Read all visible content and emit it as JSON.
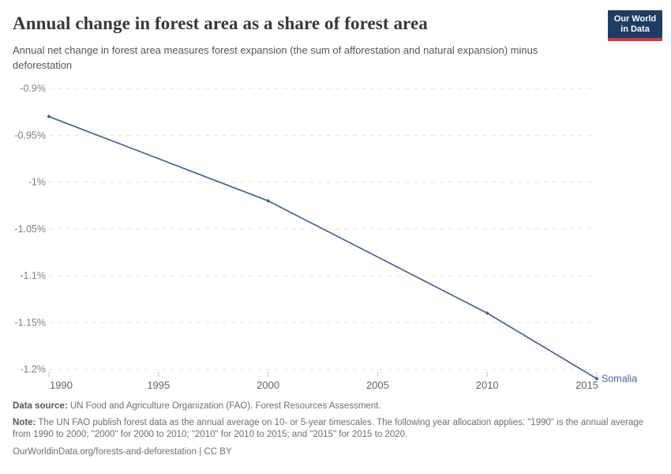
{
  "header": {
    "title": "Annual change in forest area as a share of forest area",
    "subtitle": "Annual net change in forest area measures forest expansion (the sum of afforestation and natural expansion) minus deforestation",
    "logo": {
      "line1": "Our World",
      "line2": "in Data",
      "bg_color": "#1d3d63",
      "accent_color": "#d73a39"
    }
  },
  "chart_data": {
    "type": "line",
    "title": "Annual change in forest area as a share of forest area",
    "xlabel": "",
    "ylabel": "",
    "unit": "%",
    "grid": "horizontal-dashed",
    "legend": "end-of-line-label",
    "xlim": [
      1990,
      2015
    ],
    "ylim": [
      -1.2,
      -0.9
    ],
    "x_ticks": [
      {
        "value": 1990,
        "label": "1990"
      },
      {
        "value": 1995,
        "label": "1995"
      },
      {
        "value": 2000,
        "label": "2000"
      },
      {
        "value": 2005,
        "label": "2005"
      },
      {
        "value": 2010,
        "label": "2010"
      },
      {
        "value": 2015,
        "label": "2015"
      }
    ],
    "y_ticks": [
      {
        "value": -0.9,
        "label": "-0.9%"
      },
      {
        "value": -0.95,
        "label": "-0.95%"
      },
      {
        "value": -1,
        "label": "-1%"
      },
      {
        "value": -1.05,
        "label": "-1.05%"
      },
      {
        "value": -1.1,
        "label": "-1.1%"
      },
      {
        "value": -1.15,
        "label": "-1.15%"
      },
      {
        "value": -1.2,
        "label": "-1.2%"
      }
    ],
    "series": [
      {
        "name": "Somalia",
        "color": "#44639f",
        "points": [
          {
            "x": 1990,
            "y": -0.93
          },
          {
            "x": 2000,
            "y": -1.02
          },
          {
            "x": 2010,
            "y": -1.14
          },
          {
            "x": 2015,
            "y": -1.21
          }
        ]
      }
    ],
    "colors": {
      "line": "#44639f",
      "grid": "#e4e4e4",
      "axis_text_y": "#7f7f7f",
      "axis_text_x": "#636363",
      "tick": "#c4c4c4"
    }
  },
  "footer": {
    "data_source_label": "Data source:",
    "data_source_text": " UN Food and Agriculture Organization (FAO). Forest Resources Assessment.",
    "note_label": "Note:",
    "note_text": " The UN FAO publish forest data as the annual average on 10- or 5-year timescales. The following year allocation applies: \"1990\" is the annual average from 1990 to 2000; \"2000\" for 2000 to 2010; \"2010\" for 2010 to 2015; and \"2015\" for 2015 to 2020.",
    "url": "OurWorldinData.org/forests-and-deforestation",
    "separator": " | ",
    "license": "CC BY"
  }
}
